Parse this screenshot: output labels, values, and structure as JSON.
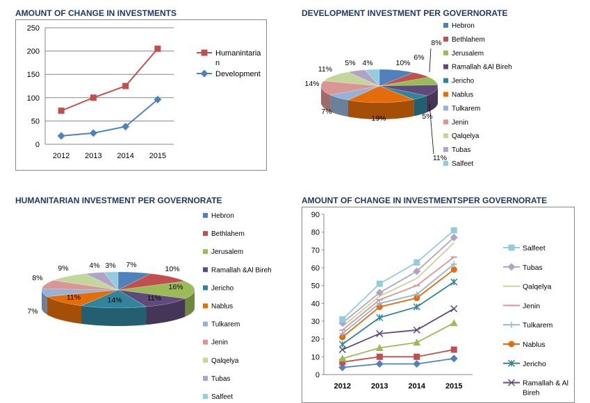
{
  "colors": {
    "title": "#1f3864",
    "humanitarian": "#c0504d",
    "development": "#4f81bd",
    "governorates": {
      "Hebron": "#4f81bd",
      "Bethlahem": "#c0504d",
      "Jerusalem": "#9bbb59",
      "Ramallah &Al Bireh": "#604a7b",
      "Jericho": "#31849b",
      "Nablus": "#e46c0a",
      "Tulkarem": "#95b3d7",
      "Jenin": "#d99694",
      "Qalqelya": "#c3d69b",
      "Tubas": "#b3a2c7",
      "Salfeet": "#93cddd"
    }
  },
  "chart_data": [
    {
      "id": "change",
      "type": "line",
      "title": "AMOUNT OF CHANGE IN INVESTMENTS",
      "categories": [
        "2012",
        "2013",
        "2014",
        "2015"
      ],
      "ylim": [
        0,
        250
      ],
      "yticks": [
        "0",
        "50",
        "100",
        "150",
        "200",
        "250"
      ],
      "grid": true,
      "legend": "right",
      "series": [
        {
          "name": "Humanintarian",
          "values": [
            72,
            100,
            125,
            205
          ],
          "marker": "square"
        },
        {
          "name": "Development",
          "values": [
            18,
            24,
            38,
            96
          ],
          "marker": "diamond"
        }
      ]
    },
    {
      "id": "dev",
      "type": "pie",
      "title": "DEVELOPMENT INVESTMENT PER GOVERNORATE",
      "legend": "right",
      "slices": [
        {
          "label": "Hebron",
          "value": 10
        },
        {
          "label": "Bethlahem",
          "value": 6
        },
        {
          "label": "Jerusalem",
          "value": 8
        },
        {
          "label": "Ramallah &Al Bireh",
          "value": 11
        },
        {
          "label": "Jericho",
          "value": 5
        },
        {
          "label": "Nablus",
          "value": 19
        },
        {
          "label": "Tulkarem",
          "value": 7
        },
        {
          "label": "Jenin",
          "value": 14
        },
        {
          "label": "Qalqelya",
          "value": 11
        },
        {
          "label": "Tubas",
          "value": 5
        },
        {
          "label": "Salfeet",
          "value": 4
        }
      ],
      "data_labels": [
        "10%",
        "6%",
        "8%",
        "11%",
        "5%",
        "19%",
        "7%",
        "14%",
        "11%",
        "5%",
        "4%"
      ]
    },
    {
      "id": "hum",
      "type": "pie",
      "title": "HUMANITARIAN INVESTMENT  PER GOVERNORATE",
      "legend": "right",
      "slices": [
        {
          "label": "Hebron",
          "value": 7
        },
        {
          "label": "Bethlahem",
          "value": 10
        },
        {
          "label": "Jerusalem",
          "value": 16
        },
        {
          "label": "Ramallah &Al Bireh",
          "value": 11
        },
        {
          "label": "Jericho",
          "value": 14
        },
        {
          "label": "Nablus",
          "value": 11
        },
        {
          "label": "Tulkarem",
          "value": 7
        },
        {
          "label": "Jenin",
          "value": 8
        },
        {
          "label": "Qalqelya",
          "value": 9
        },
        {
          "label": "Tubas",
          "value": 4
        },
        {
          "label": "Salfeet",
          "value": 3
        }
      ],
      "data_labels": [
        "7%",
        "10%",
        "16%",
        "11%",
        "14%",
        "11%",
        "7%",
        "8%",
        "9%",
        "4%",
        "3%"
      ]
    },
    {
      "id": "gov",
      "type": "line",
      "title": "AMOUNT OF CHANGE IN INVESTMENTSPER  GOVERNORATE",
      "categories": [
        "2012",
        "2013",
        "2014",
        "2015"
      ],
      "ylim": [
        0,
        90
      ],
      "yticks": [
        "0",
        "10",
        "20",
        "30",
        "40",
        "50",
        "60",
        "70",
        "80",
        "90"
      ],
      "grid": false,
      "legend": "right",
      "series": [
        {
          "name": "Salfeet",
          "values": [
            31,
            51,
            63,
            81
          ],
          "marker": "square"
        },
        {
          "name": "Tubas",
          "values": [
            29,
            46,
            58,
            77
          ],
          "marker": "diamond"
        },
        {
          "name": "Qalqelya",
          "values": [
            27,
            44,
            54,
            74
          ],
          "marker": "none"
        },
        {
          "name": "Jenin",
          "values": [
            25,
            42,
            50,
            66
          ],
          "marker": "dash"
        },
        {
          "name": "Tulkarem",
          "values": [
            23,
            40,
            45,
            62
          ],
          "marker": "plus"
        },
        {
          "name": "Nablus",
          "values": [
            21,
            38,
            43,
            59
          ],
          "marker": "circle"
        },
        {
          "name": "Jericho",
          "values": [
            17,
            32,
            38,
            52
          ],
          "marker": "asterisk"
        },
        {
          "name": "Ramallah & Al Bireh",
          "values": [
            14,
            23,
            25,
            37
          ],
          "marker": "x"
        },
        {
          "name": "Jerusalem",
          "values": [
            9,
            15,
            18,
            29
          ],
          "marker": "triangle"
        },
        {
          "name": "Bethlahem",
          "values": [
            7,
            10,
            10,
            14
          ],
          "marker": "square"
        },
        {
          "name": "Hebron",
          "values": [
            4,
            6,
            6,
            9
          ],
          "marker": "diamond"
        }
      ]
    }
  ]
}
